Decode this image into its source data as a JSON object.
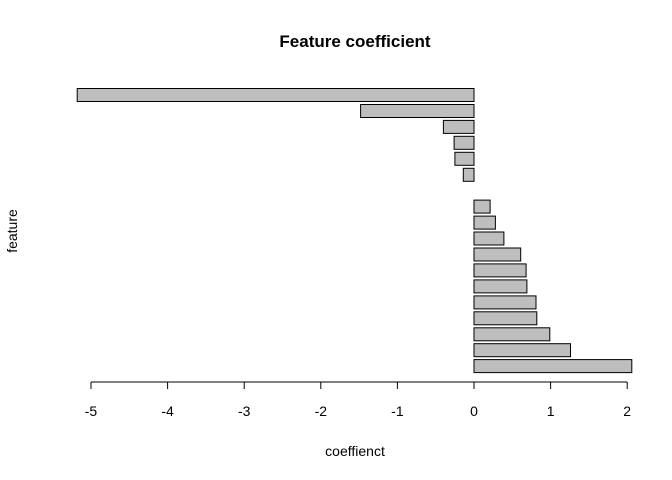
{
  "chart_data": {
    "type": "bar",
    "orientation": "horizontal",
    "title": "Feature coefficient",
    "xlabel": "coeffienct",
    "ylabel": "feature",
    "xlim": [
      -5.2,
      2.1
    ],
    "x_ticks": [
      -5,
      -4,
      -3,
      -2,
      -1,
      0,
      1,
      2
    ],
    "bar_color": "#bebebe",
    "grid": false,
    "legend": "none",
    "values": [
      2.06,
      1.26,
      0.99,
      0.82,
      0.81,
      0.69,
      0.68,
      0.61,
      0.39,
      0.28,
      0.21,
      0.0,
      -0.14,
      -0.25,
      -0.26,
      -0.4,
      -1.48,
      -5.18
    ]
  }
}
